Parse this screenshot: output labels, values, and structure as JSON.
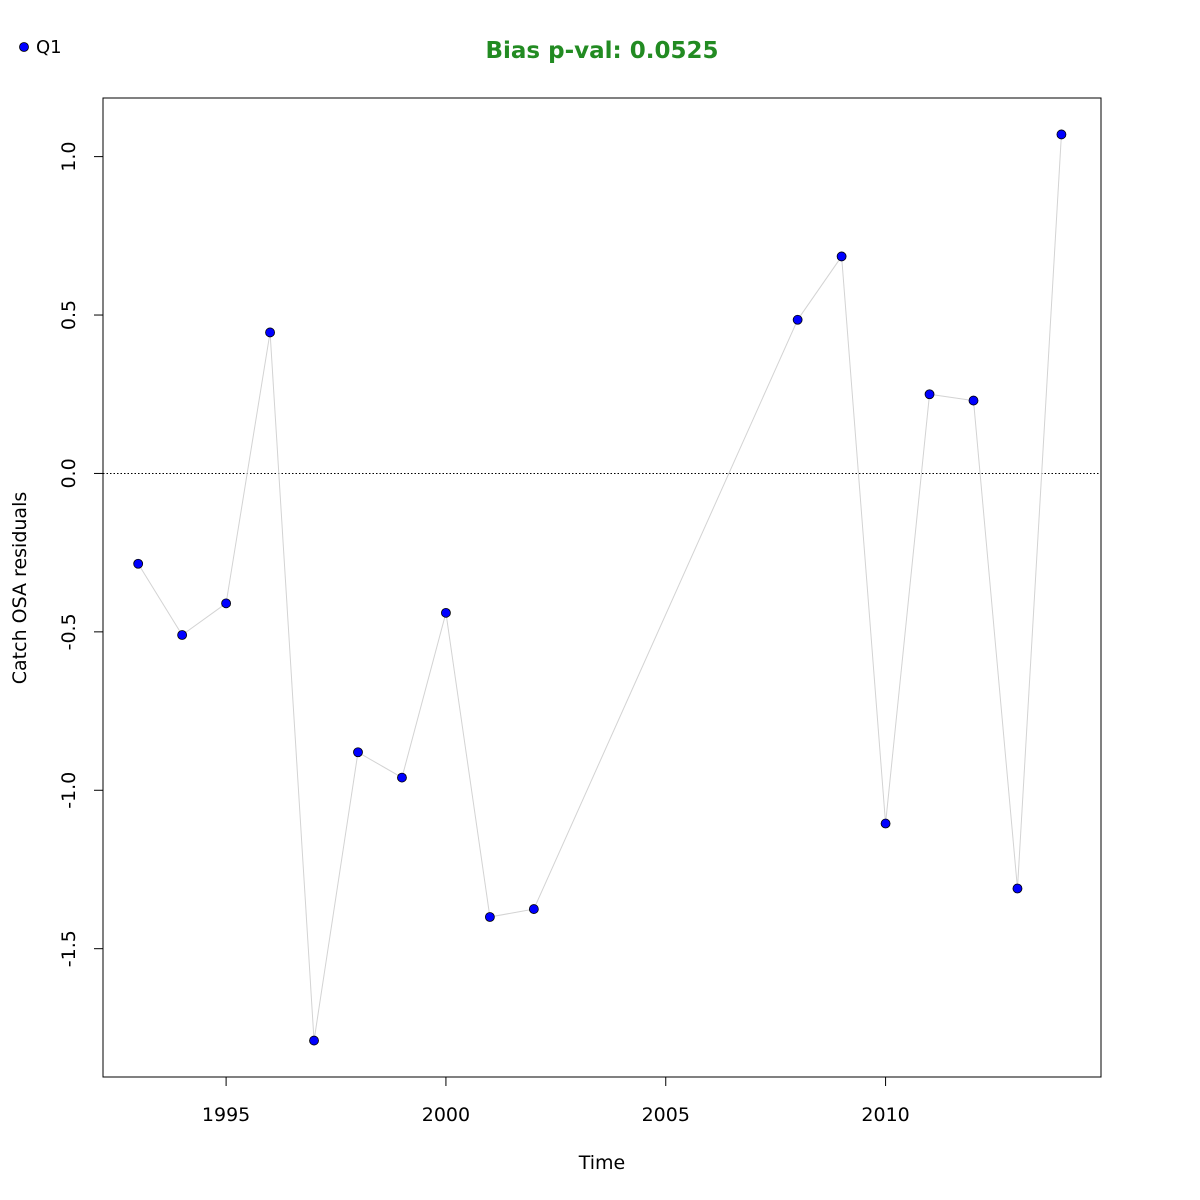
{
  "chart_data": {
    "type": "scatter",
    "title": "Bias p-val: 0.0525",
    "title_color": "#228B22",
    "xlabel": "Time",
    "ylabel": "Catch OSA residuals",
    "xlim": [
      1992.2,
      2014.9
    ],
    "ylim": [
      -1.905,
      1.185
    ],
    "x_ticks": [
      1995,
      2000,
      2005,
      2010
    ],
    "x_tick_labels": [
      "1995",
      "2000",
      "2005",
      "2010"
    ],
    "y_ticks": [
      -1.5,
      -1.0,
      -0.5,
      0.0,
      0.5,
      1.0
    ],
    "y_tick_labels": [
      "-1.5",
      "-1.0",
      "-0.5",
      "0.0",
      "0.5",
      "1.0"
    ],
    "reference_line": 0,
    "grid": false,
    "legend_position": "top-left",
    "line_color": "#d3d3d3",
    "point_color": "#0000ff",
    "series": [
      {
        "name": "Q1",
        "x": [
          1993,
          1994,
          1995,
          1996,
          1997,
          1998,
          1999,
          2000,
          2001,
          2002,
          2008,
          2009,
          2010,
          2011,
          2012,
          2013,
          2014
        ],
        "y": [
          -0.285,
          -0.51,
          -0.41,
          0.445,
          -1.79,
          -0.88,
          -0.96,
          -0.44,
          -1.4,
          -1.375,
          0.485,
          0.685,
          -1.105,
          0.25,
          0.23,
          -1.31,
          1.07
        ]
      }
    ]
  }
}
